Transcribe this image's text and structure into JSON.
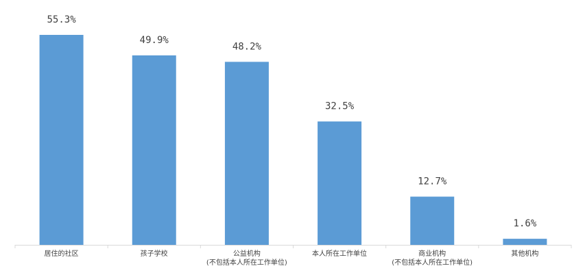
{
  "chart_data": {
    "type": "bar",
    "categories": [
      "居住的社区",
      "孩子学校",
      "公益机构\n(不包括本人所在工作单位)",
      "本人所在工作单位",
      "商业机构\n(不包括本人所在工作单位)",
      "其他机构"
    ],
    "values": [
      55.3,
      49.9,
      48.2,
      32.5,
      12.7,
      1.6
    ],
    "value_labels": [
      "55.3%",
      "49.9%",
      "48.2%",
      "32.5%",
      "12.7%",
      "1.6%"
    ],
    "color": "#5b9bd5"
  }
}
